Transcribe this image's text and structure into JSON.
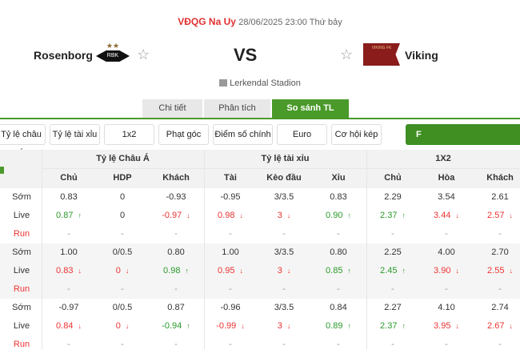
{
  "match": {
    "league": "VĐQG Na Uy",
    "datetime": "28/06/2025 23:00 Thứ bảy",
    "home": "Rosenborg",
    "away": "Viking",
    "vs": "VS",
    "stadium": "Lerkendal Stadion",
    "home_logo_text": "RBK",
    "away_logo_text": "VIKING FK"
  },
  "tabs": [
    {
      "label": "Chi tiết"
    },
    {
      "label": "Phân tích"
    },
    {
      "label": "So sánh TL",
      "active": true
    }
  ],
  "filters": [
    "Tỷ lệ châu Á",
    "Tỷ lệ tài xỉu",
    "1x2",
    "Phạt góc",
    "Điểm số chính xác",
    "Euro Handicap",
    "Cơ hội kép",
    "F"
  ],
  "table": {
    "groups": [
      "Tỷ lệ Châu Á",
      "Tỷ lệ tài xỉu",
      "1X2"
    ],
    "columns": [
      "Chủ",
      "HDP",
      "Khách",
      "Tài",
      "Kèo đầu",
      "Xỉu",
      "Chủ",
      "Hòa",
      "Khách"
    ],
    "blocks": [
      {
        "rows": [
          {
            "label": "Sớm",
            "cells": [
              [
                "0.83",
                ""
              ],
              [
                "0",
                ""
              ],
              [
                "-0.93",
                ""
              ],
              [
                "-0.95",
                ""
              ],
              [
                "3/3.5",
                ""
              ],
              [
                "0.83",
                ""
              ],
              [
                "2.29",
                ""
              ],
              [
                "3.54",
                ""
              ],
              [
                "2.61",
                ""
              ]
            ]
          },
          {
            "label": "Live",
            "cells": [
              [
                "0.87",
                "up"
              ],
              [
                "0",
                ""
              ],
              [
                "-0.97",
                "down"
              ],
              [
                "0.98",
                "down"
              ],
              [
                "3",
                "down"
              ],
              [
                "0.90",
                "up"
              ],
              [
                "2.37",
                "up"
              ],
              [
                "3.44",
                "down"
              ],
              [
                "2.57",
                "down"
              ]
            ]
          },
          {
            "label": "Run",
            "cells": [
              [
                "-",
                ""
              ],
              [
                "-",
                ""
              ],
              [
                "-",
                ""
              ],
              [
                "-",
                ""
              ],
              [
                "-",
                ""
              ],
              [
                "-",
                ""
              ],
              [
                "-",
                ""
              ],
              [
                "-",
                ""
              ],
              [
                "-",
                ""
              ]
            ]
          }
        ]
      },
      {
        "rows": [
          {
            "label": "Sớm",
            "cells": [
              [
                "1.00",
                ""
              ],
              [
                "0/0.5",
                ""
              ],
              [
                "0.80",
                ""
              ],
              [
                "1.00",
                ""
              ],
              [
                "3/3.5",
                ""
              ],
              [
                "0.80",
                ""
              ],
              [
                "2.25",
                ""
              ],
              [
                "4.00",
                ""
              ],
              [
                "2.70",
                ""
              ]
            ]
          },
          {
            "label": "Live",
            "cells": [
              [
                "0.83",
                "down"
              ],
              [
                "0",
                "down"
              ],
              [
                "0.98",
                "up"
              ],
              [
                "0.95",
                "down"
              ],
              [
                "3",
                "down"
              ],
              [
                "0.85",
                "up"
              ],
              [
                "2.45",
                "up"
              ],
              [
                "3.90",
                "down"
              ],
              [
                "2.55",
                "down"
              ]
            ]
          },
          {
            "label": "Run",
            "cells": [
              [
                "-",
                ""
              ],
              [
                "-",
                ""
              ],
              [
                "-",
                ""
              ],
              [
                "-",
                ""
              ],
              [
                "-",
                ""
              ],
              [
                "-",
                ""
              ],
              [
                "-",
                ""
              ],
              [
                "-",
                ""
              ],
              [
                "-",
                ""
              ]
            ]
          }
        ]
      },
      {
        "rows": [
          {
            "label": "Sớm",
            "cells": [
              [
                "-0.97",
                ""
              ],
              [
                "0/0.5",
                ""
              ],
              [
                "0.87",
                ""
              ],
              [
                "-0.96",
                ""
              ],
              [
                "3/3.5",
                ""
              ],
              [
                "0.84",
                ""
              ],
              [
                "2.27",
                ""
              ],
              [
                "4.10",
                ""
              ],
              [
                "2.74",
                ""
              ]
            ]
          },
          {
            "label": "Live",
            "cells": [
              [
                "0.84",
                "down"
              ],
              [
                "0",
                "down"
              ],
              [
                "-0.94",
                "up"
              ],
              [
                "-0.99",
                "down"
              ],
              [
                "3",
                "down"
              ],
              [
                "0.89",
                "up"
              ],
              [
                "2.37",
                "up"
              ],
              [
                "3.95",
                "down"
              ],
              [
                "2.67",
                "down"
              ]
            ]
          },
          {
            "label": "Run",
            "cells": [
              [
                "-",
                ""
              ],
              [
                "-",
                ""
              ],
              [
                "-",
                ""
              ],
              [
                "-",
                ""
              ],
              [
                "-",
                ""
              ],
              [
                "-",
                ""
              ],
              [
                "-",
                ""
              ],
              [
                "-",
                ""
              ],
              [
                "-",
                ""
              ]
            ]
          }
        ]
      }
    ]
  },
  "colors": {
    "green": "#4a9a2a",
    "up": "#2a9a2a",
    "down": "#e33333",
    "league": "#e03030"
  }
}
